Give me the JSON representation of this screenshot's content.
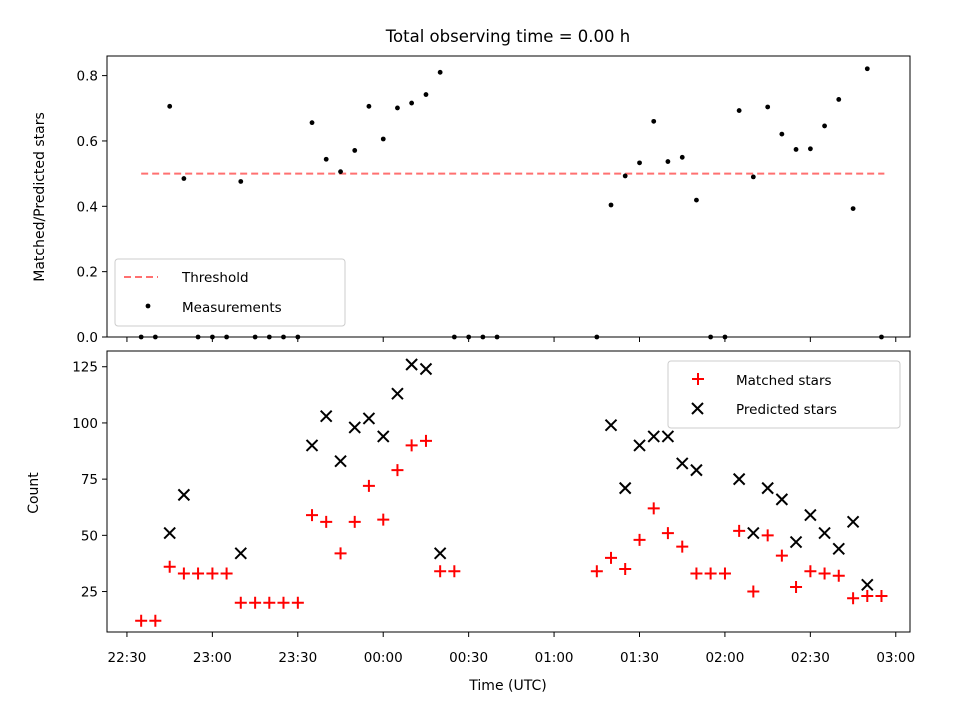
{
  "chart_data": [
    {
      "type": "scatter",
      "title": "Total observing time = 0.00 h",
      "xlabel": "",
      "ylabel": "Matched/Predicted stars",
      "ylim": [
        0,
        0.86
      ],
      "yticks": [
        0.0,
        0.2,
        0.4,
        0.6,
        0.8
      ],
      "ytick_labels": [
        "0.0",
        "0.2",
        "0.4",
        "0.6",
        "0.8"
      ],
      "xlim": [
        -0.2,
        4.5
      ],
      "grid": false,
      "legend": "lower-left",
      "series": [
        {
          "name": "Threshold",
          "kind": "dashed-line",
          "color": "#ff7070",
          "x": [
            0.0,
            4.35
          ],
          "y": [
            0.5,
            0.5
          ]
        },
        {
          "name": "Measurements",
          "kind": "points",
          "color": "#000000",
          "x": [
            0.0,
            0.083,
            0.167,
            0.25,
            0.333,
            0.417,
            0.5,
            0.583,
            0.667,
            0.75,
            0.833,
            0.917,
            1.0,
            1.083,
            1.167,
            1.25,
            1.333,
            1.417,
            1.5,
            1.583,
            1.667,
            1.75,
            1.833,
            1.917,
            2.0,
            2.083,
            2.667,
            2.75,
            2.833,
            2.917,
            3.0,
            3.083,
            3.167,
            3.25,
            3.333,
            3.417,
            3.5,
            3.583,
            3.667,
            3.75,
            3.833,
            3.917,
            4.0,
            4.083,
            4.167,
            4.25,
            4.333
          ],
          "y": [
            0.0,
            0.0,
            0.706,
            0.485,
            0.0,
            0.0,
            0.0,
            0.476,
            0.0,
            0.0,
            0.0,
            0.0,
            0.656,
            0.544,
            0.506,
            0.571,
            0.706,
            0.606,
            0.701,
            0.716,
            0.742,
            0.81,
            0.0,
            0.0,
            0.0,
            0.0,
            0.0,
            0.404,
            0.493,
            0.533,
            0.66,
            0.537,
            0.55,
            0.419,
            0.0,
            0.0,
            0.693,
            0.49,
            0.704,
            0.621,
            0.574,
            0.576,
            0.646,
            0.727,
            0.393,
            0.821,
            0.0
          ]
        }
      ]
    },
    {
      "type": "scatter",
      "title": "",
      "xlabel": "Time (UTC)",
      "ylabel": "Count",
      "ylim": [
        7,
        132
      ],
      "yticks": [
        25,
        50,
        75,
        100,
        125
      ],
      "ytick_labels": [
        "25",
        "50",
        "75",
        "100",
        "125"
      ],
      "xlim": [
        -0.2,
        4.5
      ],
      "xticks": [
        -0.0833,
        0.4167,
        0.9167,
        1.4167,
        1.9167,
        2.4167,
        2.9167,
        3.4167,
        3.9167,
        4.4167
      ],
      "xtick_labels": [
        "22:30",
        "23:00",
        "23:30",
        "00:00",
        "00:30",
        "01:00",
        "01:30",
        "02:00",
        "02:30",
        "03:00"
      ],
      "grid": false,
      "legend": "top-right",
      "series": [
        {
          "name": "Matched stars",
          "marker": "plus",
          "color": "#ff0000",
          "x": [
            0.0,
            0.083,
            0.167,
            0.25,
            0.333,
            0.417,
            0.5,
            0.583,
            0.667,
            0.75,
            0.833,
            0.917,
            1.0,
            1.083,
            1.167,
            1.25,
            1.333,
            1.417,
            1.5,
            1.583,
            1.667,
            1.75,
            1.833,
            2.667,
            2.75,
            2.833,
            2.917,
            3.0,
            3.083,
            3.167,
            3.25,
            3.333,
            3.417,
            3.5,
            3.583,
            3.667,
            3.75,
            3.833,
            3.917,
            4.0,
            4.083,
            4.167,
            4.25,
            4.333
          ],
          "y": [
            12,
            12,
            36,
            33,
            33,
            33,
            33,
            20,
            20,
            20,
            20,
            20,
            59,
            56,
            42,
            56,
            72,
            57,
            79,
            90,
            92,
            34,
            34,
            34,
            40,
            35,
            48,
            62,
            51,
            45,
            33,
            33,
            33,
            52,
            25,
            50,
            41,
            27,
            34,
            33,
            32,
            22,
            23,
            23
          ]
        },
        {
          "name": "Predicted stars",
          "marker": "x",
          "color": "#000000",
          "x": [
            0.167,
            0.25,
            0.583,
            1.0,
            1.083,
            1.167,
            1.25,
            1.333,
            1.417,
            1.5,
            1.583,
            1.667,
            1.75,
            2.75,
            2.833,
            2.917,
            3.0,
            3.083,
            3.167,
            3.25,
            3.5,
            3.583,
            3.667,
            3.75,
            3.833,
            3.917,
            4.0,
            4.083,
            4.167,
            4.25
          ],
          "y": [
            51,
            68,
            42,
            90,
            103,
            83,
            98,
            102,
            94,
            113,
            126,
            124,
            42,
            99,
            71,
            90,
            94,
            94,
            82,
            79,
            75,
            51,
            71,
            66,
            47,
            59,
            51,
            44,
            56,
            28
          ]
        }
      ]
    }
  ]
}
